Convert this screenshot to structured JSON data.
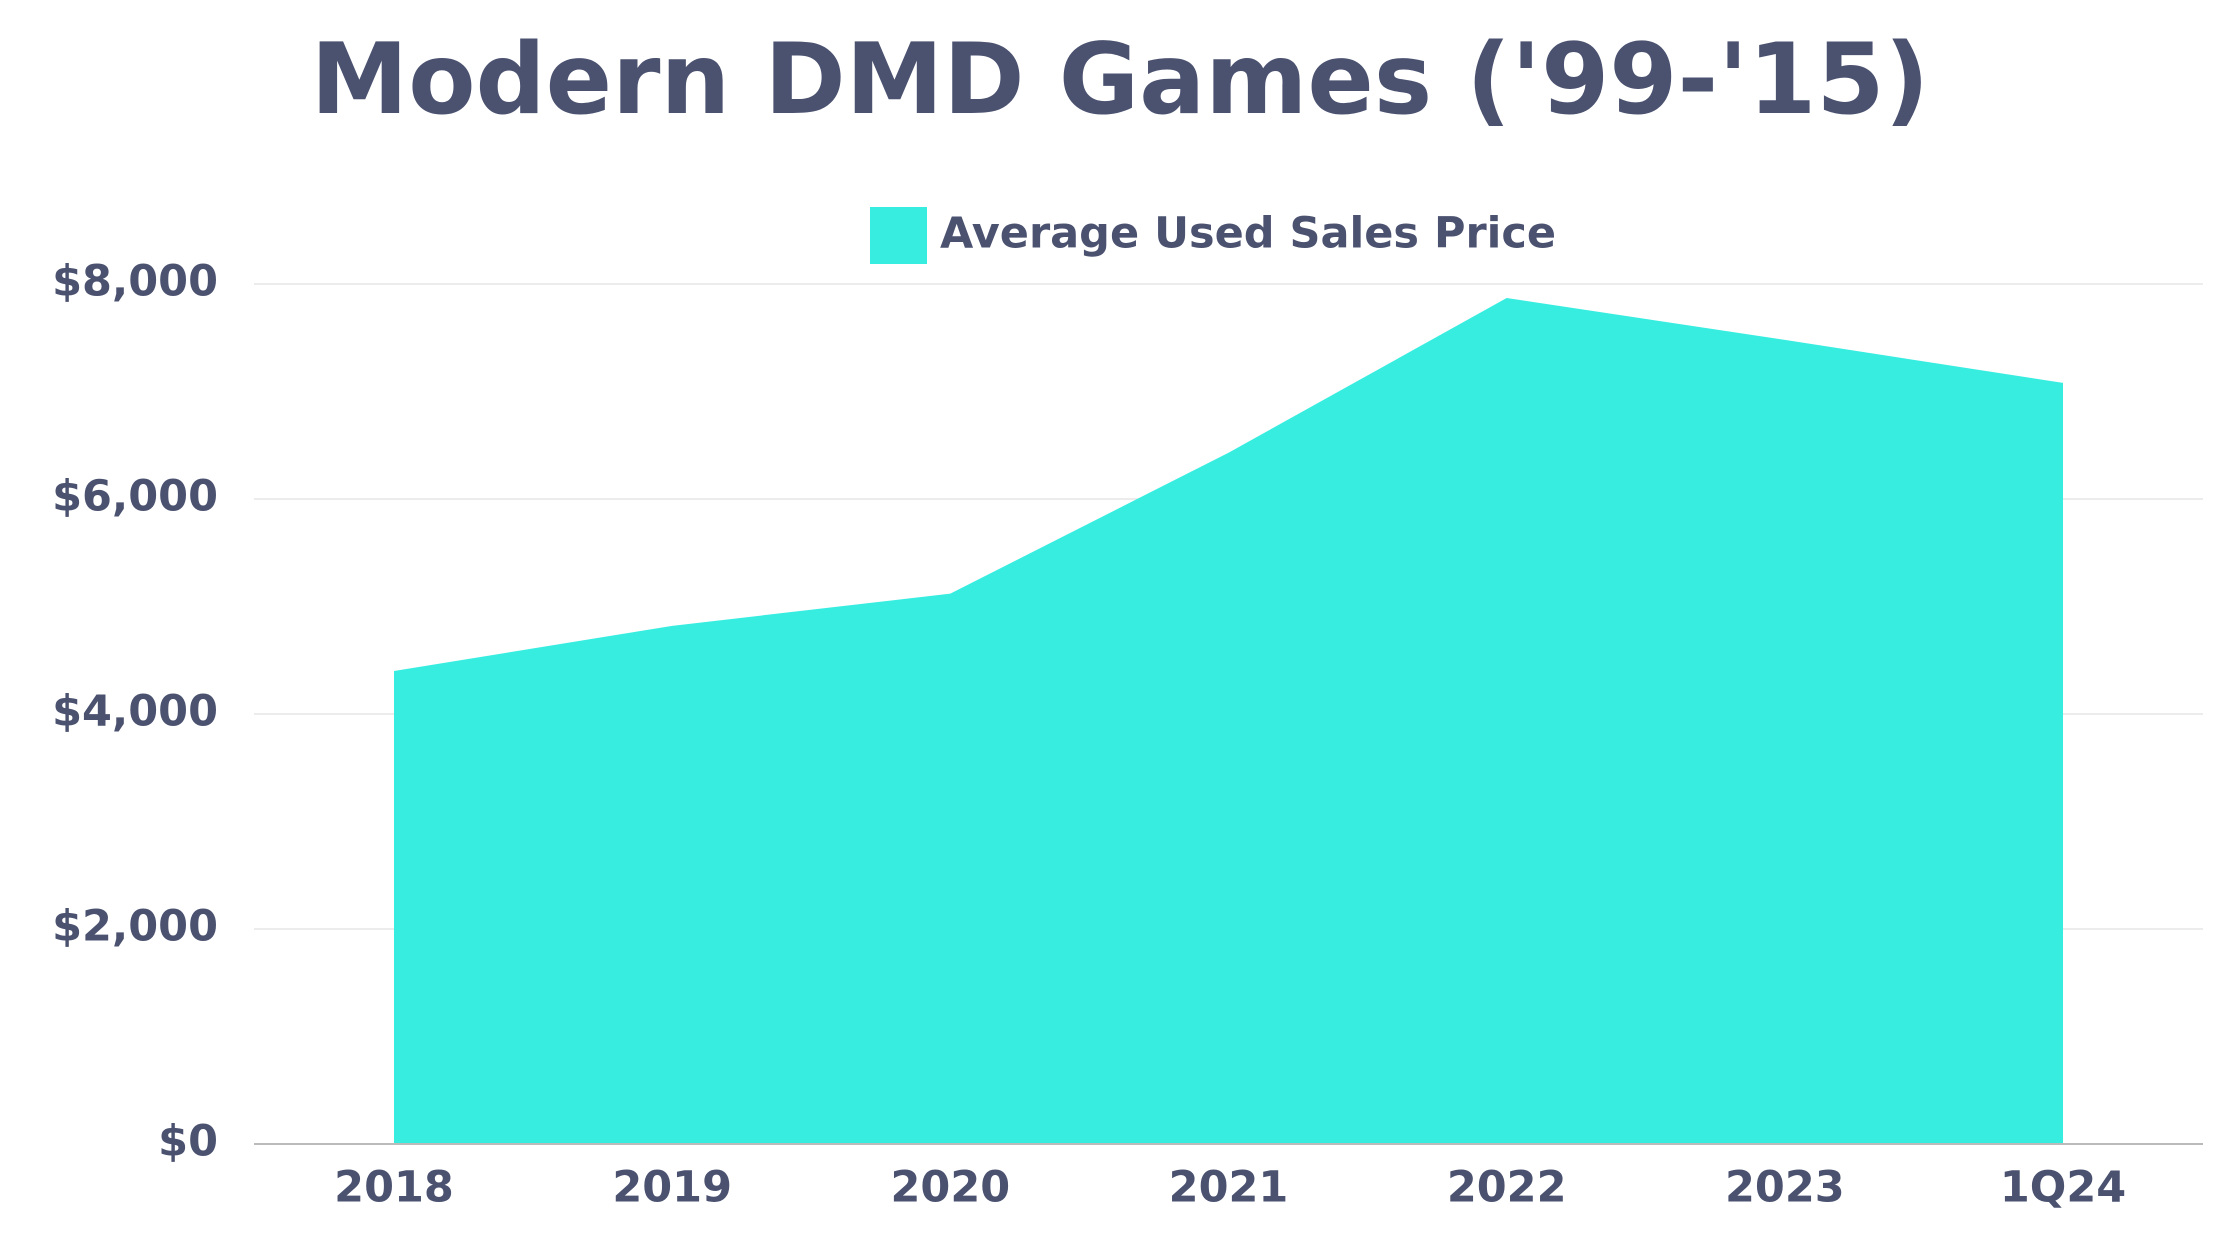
{
  "chart_data": {
    "type": "area",
    "title": "Modern DMD Games ('99-'15)",
    "categories": [
      "2018",
      "2019",
      "2020",
      "2021",
      "2022",
      "2023",
      "1Q24"
    ],
    "series": [
      {
        "name": "Average Used Sales Price",
        "color": "#37ede0",
        "values": [
          4400,
          4820,
          5120,
          6430,
          7870,
          7480,
          7080
        ]
      }
    ],
    "ylim": [
      0,
      8000
    ],
    "yticks": [
      {
        "value": 0,
        "label": "$0"
      },
      {
        "value": 2000,
        "label": "$2,000"
      },
      {
        "value": 4000,
        "label": "$4,000"
      },
      {
        "value": 6000,
        "label": "$6,000"
      },
      {
        "value": 8000,
        "label": "$8,000"
      }
    ],
    "grid": true,
    "legend": "top"
  }
}
